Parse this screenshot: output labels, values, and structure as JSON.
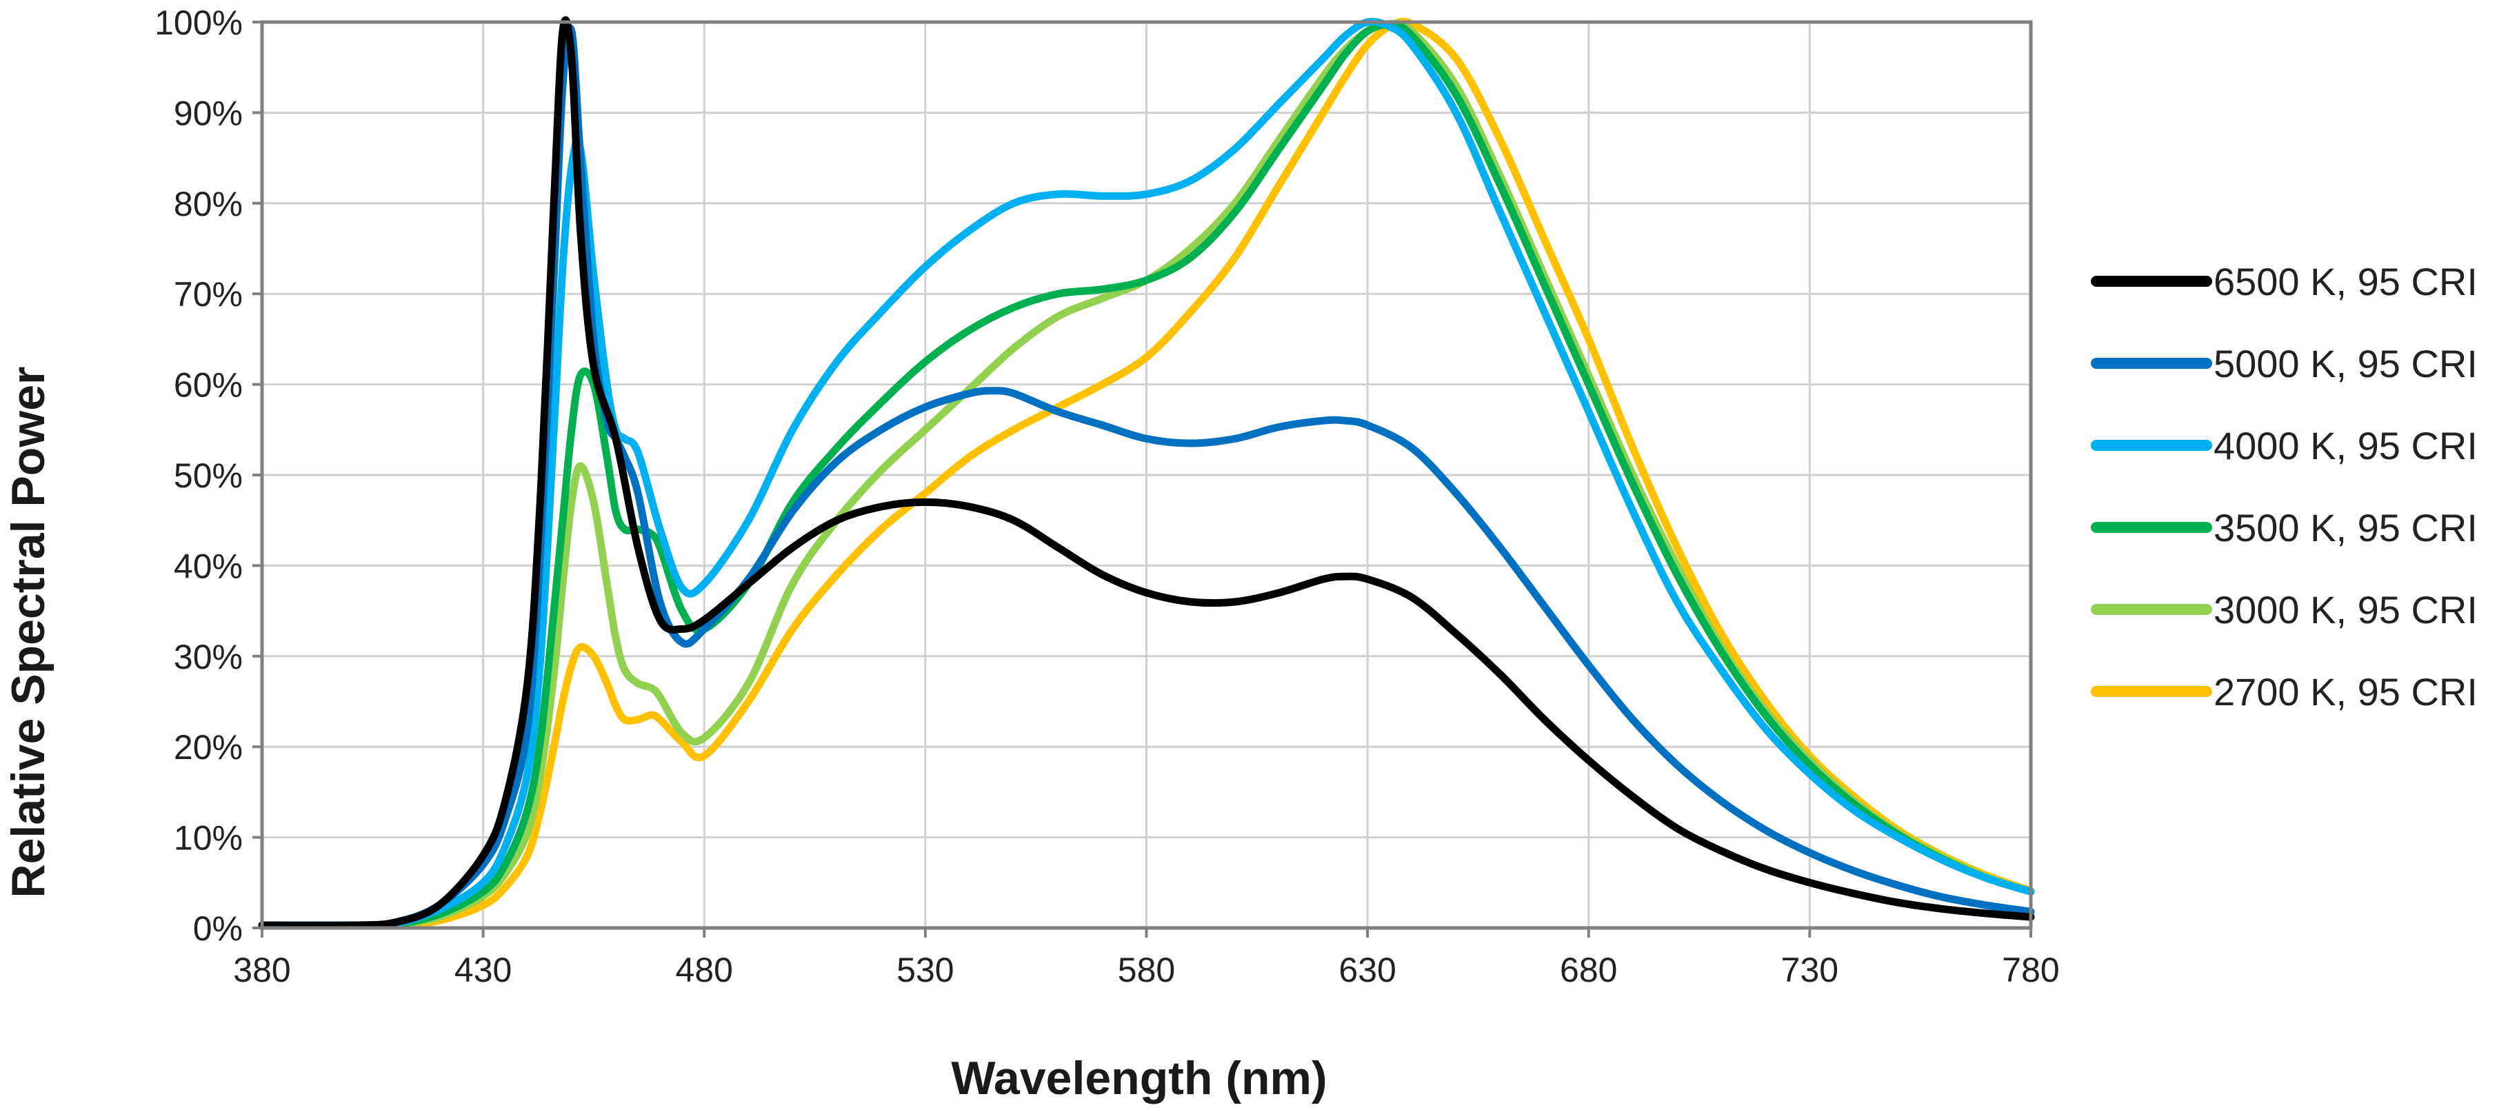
{
  "chart_data": {
    "type": "line",
    "xlabel": "Wavelength (nm)",
    "ylabel": "Relative Spectral Power",
    "xlim": [
      380,
      780
    ],
    "ylim": [
      0,
      100
    ],
    "x_ticks": [
      380,
      430,
      480,
      530,
      580,
      630,
      680,
      730,
      780
    ],
    "x_tick_labels": [
      "380",
      "430",
      "480",
      "530",
      "580",
      "630",
      "680",
      "730",
      "780"
    ],
    "y_ticks": [
      0,
      10,
      20,
      30,
      40,
      50,
      60,
      70,
      80,
      90,
      100
    ],
    "y_tick_labels": [
      "0%",
      "10%",
      "20%",
      "30%",
      "40%",
      "50%",
      "60%",
      "70%",
      "80%",
      "90%",
      "100%"
    ],
    "grid": true,
    "legend_position": "right",
    "series": [
      {
        "name": "6500 K, 95 CRI",
        "color": "#000000",
        "x": [
          380,
          400,
          410,
          420,
          430,
          435,
          440,
          443,
          446,
          448,
          450,
          452,
          455,
          460,
          465,
          470,
          475,
          480,
          490,
          500,
          510,
          520,
          530,
          540,
          550,
          560,
          570,
          580,
          590,
          600,
          610,
          620,
          625,
          630,
          640,
          650,
          660,
          670,
          680,
          690,
          700,
          710,
          720,
          730,
          740,
          750,
          760,
          770,
          780
        ],
        "y": [
          0.3,
          0.3,
          0.6,
          2.5,
          8,
          14,
          27,
          48,
          80,
          99,
          96,
          77,
          62,
          54,
          42,
          34,
          33,
          34,
          38,
          42,
          45,
          46.5,
          47,
          46.5,
          45,
          42,
          39,
          37,
          36,
          36,
          37,
          38.5,
          38.8,
          38.5,
          36.5,
          32.5,
          28,
          23,
          18.5,
          14.5,
          11,
          8.5,
          6.5,
          5,
          3.8,
          2.8,
          2.1,
          1.6,
          1.2
        ]
      },
      {
        "name": "5000 K, 95 CRI",
        "color": "#0070c0",
        "x": [
          380,
          400,
          410,
          420,
          430,
          435,
          440,
          443,
          446,
          448,
          450,
          452,
          455,
          458,
          460,
          462,
          465,
          470,
          475,
          480,
          490,
          500,
          510,
          520,
          530,
          540,
          545,
          550,
          560,
          570,
          580,
          590,
          600,
          610,
          620,
          625,
          630,
          640,
          650,
          660,
          670,
          680,
          690,
          700,
          710,
          720,
          730,
          740,
          750,
          760,
          770,
          780
        ],
        "y": [
          0.3,
          0.3,
          0.6,
          2.5,
          7,
          12,
          22,
          42,
          72,
          93,
          99,
          85,
          65,
          56,
          54,
          52,
          48,
          36,
          31.5,
          33,
          38.5,
          46,
          51.5,
          55,
          57.5,
          59,
          59.3,
          59,
          57,
          55.5,
          54,
          53.5,
          54,
          55.3,
          56,
          56,
          55.5,
          53,
          48,
          42,
          35.5,
          29,
          23,
          18,
          14,
          10.8,
          8.3,
          6.3,
          4.7,
          3.4,
          2.5,
          1.8
        ]
      },
      {
        "name": "4000 K, 95 CRI",
        "color": "#00b0f0",
        "x": [
          380,
          400,
          410,
          420,
          430,
          435,
          440,
          443,
          446,
          448,
          450,
          452,
          455,
          458,
          460,
          462,
          465,
          470,
          475,
          480,
          490,
          500,
          510,
          520,
          530,
          540,
          550,
          560,
          570,
          580,
          590,
          600,
          610,
          620,
          625,
          630,
          635,
          640,
          650,
          660,
          670,
          680,
          690,
          700,
          710,
          720,
          730,
          740,
          750,
          760,
          770,
          780
        ],
        "y": [
          0.3,
          0.3,
          0.5,
          2,
          5,
          9,
          17,
          30,
          55,
          73,
          84,
          86,
          72,
          60,
          55,
          54,
          52.5,
          44,
          37.5,
          38,
          45,
          55,
          62.5,
          68,
          73,
          77,
          80,
          81,
          80.8,
          81,
          82.5,
          86,
          91,
          96,
          98.5,
          100,
          99.5,
          97.5,
          90,
          79,
          68,
          57,
          46,
          36,
          28.5,
          22,
          17,
          13,
          10,
          7.5,
          5.5,
          4
        ]
      },
      {
        "name": "3500 K, 95 CRI",
        "color": "#00b050",
        "x": [
          380,
          400,
          410,
          420,
          430,
          435,
          440,
          443,
          446,
          448,
          450,
          452,
          455,
          458,
          460,
          462,
          465,
          468,
          470,
          475,
          480,
          490,
          500,
          510,
          520,
          530,
          540,
          550,
          560,
          570,
          580,
          590,
          600,
          610,
          620,
          625,
          630,
          635,
          640,
          650,
          660,
          670,
          680,
          690,
          700,
          710,
          720,
          730,
          740,
          750,
          760,
          770,
          780
        ],
        "y": [
          0.3,
          0.3,
          0.4,
          1.5,
          4,
          7,
          13,
          21,
          35,
          45,
          55,
          61,
          60,
          52,
          46,
          44,
          44,
          43.5,
          42,
          35,
          33,
          38,
          47,
          53,
          58,
          62.5,
          66,
          68.5,
          70,
          70.5,
          71.5,
          74,
          79,
          86,
          93,
          96.5,
          99,
          99.7,
          98.5,
          92,
          82,
          71,
          60,
          49,
          39,
          30.5,
          23.5,
          18,
          13.7,
          10.3,
          7.6,
          5.5,
          4
        ]
      },
      {
        "name": "3000 K, 95 CRI",
        "color": "#92d050",
        "x": [
          380,
          400,
          410,
          420,
          430,
          435,
          440,
          443,
          446,
          448,
          450,
          452,
          455,
          458,
          460,
          462,
          465,
          468,
          470,
          475,
          480,
          490,
          500,
          510,
          520,
          530,
          540,
          550,
          560,
          570,
          580,
          590,
          600,
          610,
          620,
          625,
          630,
          635,
          640,
          650,
          660,
          670,
          680,
          690,
          700,
          710,
          720,
          730,
          740,
          750,
          760,
          770,
          780
        ],
        "y": [
          0.3,
          0.3,
          0.4,
          1.2,
          3.5,
          6,
          10.5,
          17,
          28,
          38,
          47,
          51,
          47,
          38,
          32,
          28.5,
          27,
          26.5,
          25.5,
          21.5,
          21,
          27,
          38,
          45,
          50.5,
          55,
          59.5,
          64,
          67.5,
          69.5,
          71.5,
          75,
          80,
          87,
          94,
          97,
          99,
          99.8,
          99,
          93,
          83,
          72,
          61,
          50,
          40,
          31,
          24,
          18.5,
          14,
          10.5,
          7.8,
          5.6,
          4
        ]
      },
      {
        "name": "2700 K, 95 CRI",
        "color": "#ffc000",
        "x": [
          380,
          400,
          410,
          420,
          430,
          435,
          440,
          443,
          446,
          448,
          450,
          452,
          455,
          458,
          460,
          462,
          465,
          468,
          470,
          475,
          480,
          490,
          500,
          510,
          520,
          530,
          540,
          550,
          560,
          570,
          580,
          590,
          600,
          610,
          620,
          625,
          630,
          635,
          640,
          650,
          660,
          670,
          680,
          690,
          700,
          710,
          720,
          730,
          740,
          750,
          760,
          770,
          780
        ],
        "y": [
          0.3,
          0.3,
          0.3,
          0.8,
          2.5,
          4.5,
          8,
          13,
          20,
          25,
          29,
          31,
          30,
          27,
          24.5,
          23,
          23,
          23.5,
          23,
          20.5,
          19,
          25,
          33,
          39,
          44,
          48,
          52,
          55,
          57.5,
          60,
          63,
          68,
          74,
          82,
          90,
          94,
          97.5,
          99.5,
          99.8,
          96,
          87,
          76,
          65,
          53,
          42,
          32.5,
          25,
          19,
          14.5,
          10.8,
          8,
          5.8,
          4.1
        ]
      }
    ]
  }
}
